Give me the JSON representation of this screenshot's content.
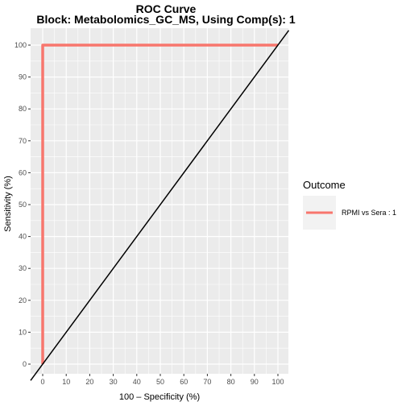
{
  "chart_data": {
    "type": "line",
    "title": "ROC Curve",
    "subtitle": "Block: Metabolomics_GC_MS, Using Comp(s): 1",
    "xlabel": "100 – Specificity (%)",
    "ylabel": "Sensitivity (%)",
    "xlim": [
      0,
      100
    ],
    "ylim": [
      0,
      100
    ],
    "xticks": [
      0,
      10,
      20,
      30,
      40,
      50,
      60,
      70,
      80,
      90,
      100
    ],
    "yticks": [
      0,
      10,
      20,
      30,
      40,
      50,
      60,
      70,
      80,
      90,
      100
    ],
    "grid": true,
    "legend_position": "right",
    "legend_title": "Outcome",
    "series": [
      {
        "name": "RPMI vs Sera : 1",
        "color": "#F8766D",
        "points": [
          [
            0,
            0
          ],
          [
            0,
            100
          ],
          [
            100,
            100
          ]
        ]
      }
    ],
    "reference_line": {
      "from": [
        0,
        0
      ],
      "to": [
        100,
        100
      ],
      "color": "#000000"
    },
    "panel_color": "#EBEBEB",
    "grid_color": "#FFFFFF"
  }
}
